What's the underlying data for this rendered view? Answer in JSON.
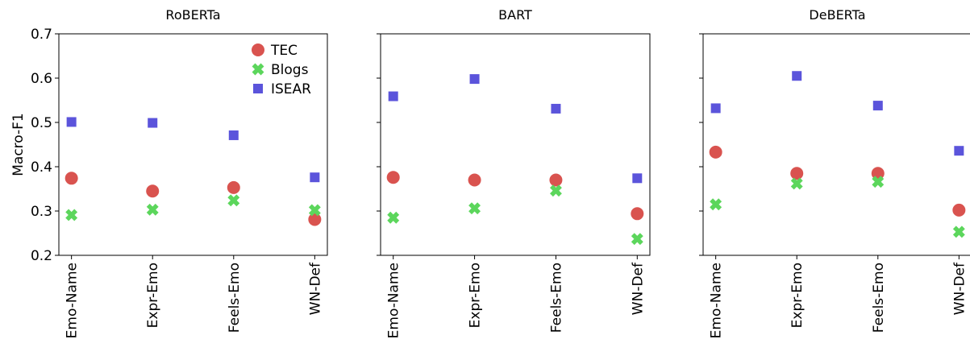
{
  "chart_data": {
    "type": "scatter",
    "ylabel": "Macro-F1",
    "ylim": [
      0.2,
      0.7
    ],
    "yticks": [
      "0.2",
      "0.3",
      "0.4",
      "0.5",
      "0.6",
      "0.7"
    ],
    "categories": [
      "Emo-Name",
      "Expr-Emo",
      "Feels-Emo",
      "WN-Def"
    ],
    "legend": {
      "placement": "top-right of first panel",
      "entries": [
        "TEC",
        "Blogs",
        "ISEAR"
      ]
    },
    "series_styles": [
      {
        "name": "TEC",
        "marker": "circle",
        "color": "#d9534f"
      },
      {
        "name": "Blogs",
        "marker": "x",
        "color": "#5cd65c"
      },
      {
        "name": "ISEAR",
        "marker": "square",
        "color": "#5b54db"
      }
    ],
    "panels": [
      {
        "title": "RoBERTa",
        "series": [
          {
            "name": "TEC",
            "values": [
              0.374,
              0.345,
              0.353,
              0.281
            ]
          },
          {
            "name": "Blogs",
            "values": [
              0.291,
              0.303,
              0.324,
              0.302
            ]
          },
          {
            "name": "ISEAR",
            "values": [
              0.501,
              0.499,
              0.471,
              0.376
            ]
          }
        ]
      },
      {
        "title": "BART",
        "series": [
          {
            "name": "TEC",
            "values": [
              0.376,
              0.37,
              0.37,
              0.294
            ]
          },
          {
            "name": "Blogs",
            "values": [
              0.285,
              0.306,
              0.346,
              0.237
            ]
          },
          {
            "name": "ISEAR",
            "values": [
              0.559,
              0.598,
              0.531,
              0.374
            ]
          }
        ]
      },
      {
        "title": "DeBERTa",
        "series": [
          {
            "name": "TEC",
            "values": [
              0.433,
              0.385,
              0.385,
              0.302
            ]
          },
          {
            "name": "Blogs",
            "values": [
              0.315,
              0.362,
              0.366,
              0.253
            ]
          },
          {
            "name": "ISEAR",
            "values": [
              0.532,
              0.605,
              0.538,
              0.436
            ]
          }
        ]
      }
    ]
  }
}
